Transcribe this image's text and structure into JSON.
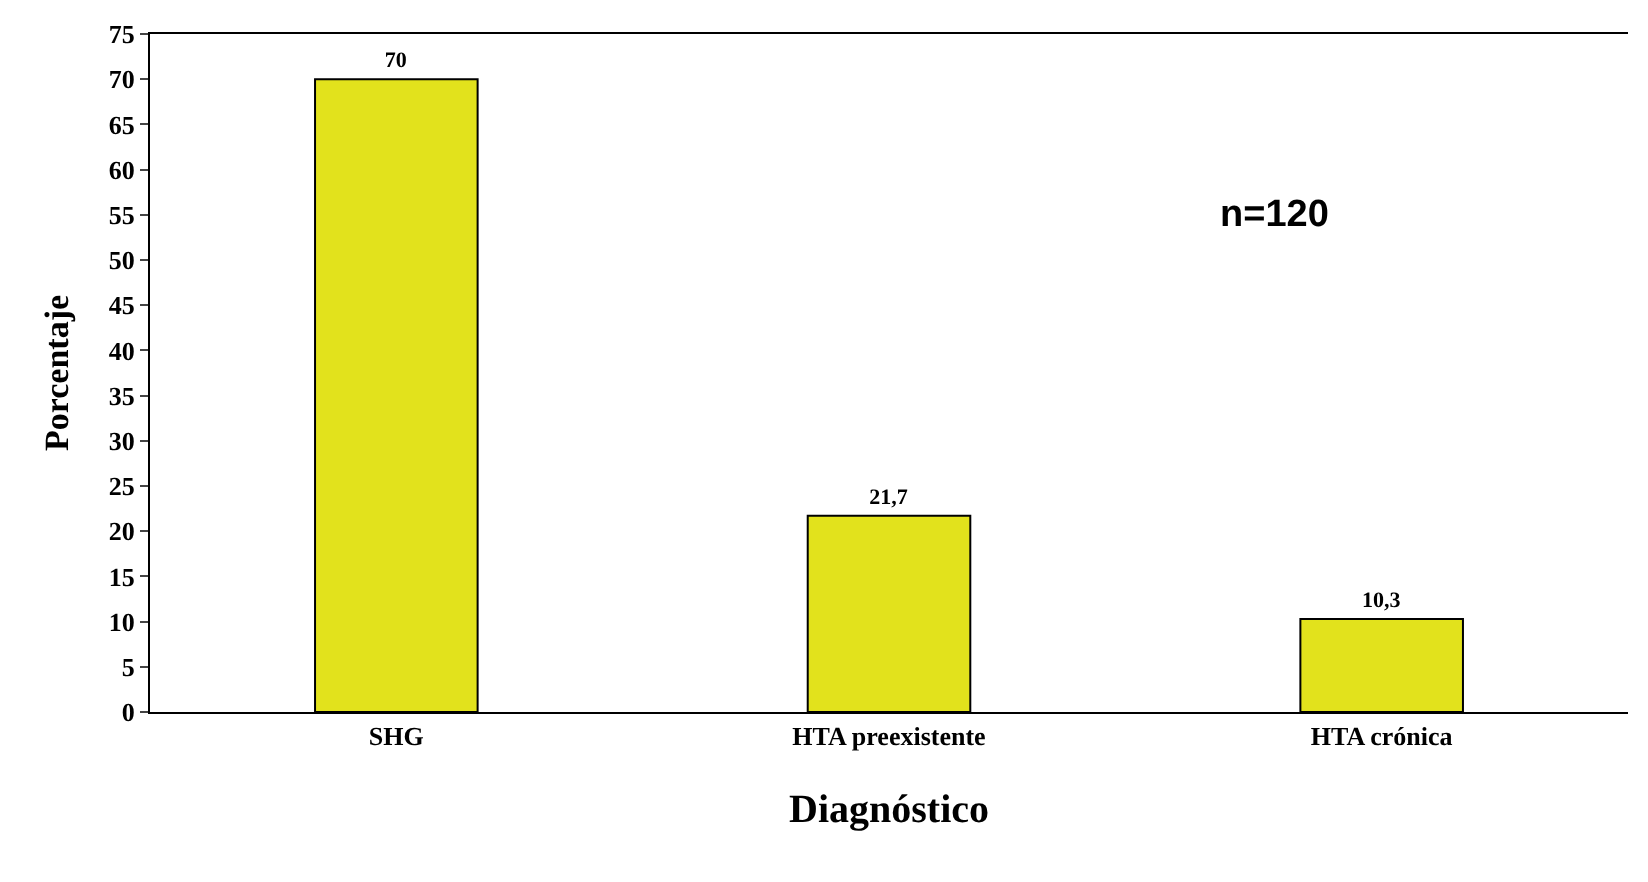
{
  "chart_data": {
    "type": "bar",
    "xlabel": "Diagnóstico",
    "ylabel": "Porcentaje",
    "categories": [
      "SHG",
      "HTA preexistente",
      "HTA crónica"
    ],
    "values": [
      70,
      21.7,
      10.3
    ],
    "value_labels": [
      "70",
      "21,7",
      "10,3"
    ],
    "color": "#e2e21c",
    "ylim": [
      0,
      75
    ],
    "yticks": [
      0,
      5,
      10,
      15,
      20,
      25,
      30,
      35,
      40,
      45,
      50,
      55,
      60,
      65,
      70,
      75
    ],
    "annotations": [
      "n=120"
    ]
  }
}
